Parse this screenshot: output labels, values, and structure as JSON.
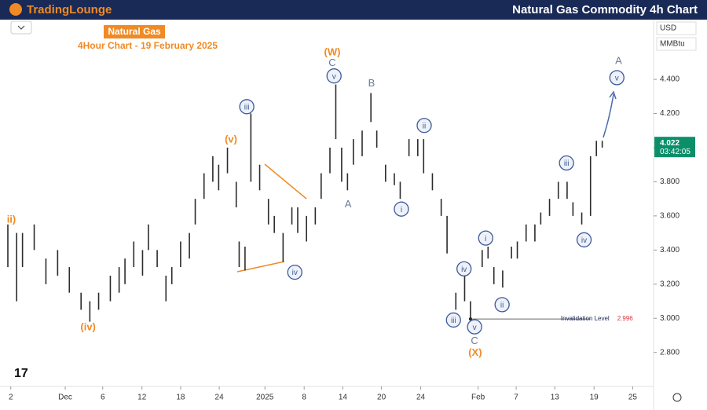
{
  "header": {
    "brand": "TradingLounge",
    "title": "Natural Gas Commodity 4h Chart"
  },
  "chart_data": {
    "type": "ohlc",
    "title": "Natural Gas",
    "subtitle": "4Hour Chart - 19 February 2025",
    "currency": "USD",
    "unit": "MMBtu",
    "color": "#2b2b2b",
    "xlim": [
      0,
      110
    ],
    "ylim": [
      2.61,
      4.75
    ],
    "xticks": [
      {
        "value": 0.5,
        "label": "2"
      },
      {
        "value": 9.8,
        "label": "Dec"
      },
      {
        "value": 16.2,
        "label": "6"
      },
      {
        "value": 22.9,
        "label": "12"
      },
      {
        "value": 29.5,
        "label": "18"
      },
      {
        "value": 36.1,
        "label": "24"
      },
      {
        "value": 43.9,
        "label": "2025"
      },
      {
        "value": 50.6,
        "label": "8"
      },
      {
        "value": 57.2,
        "label": "14"
      },
      {
        "value": 63.8,
        "label": "20"
      },
      {
        "value": 70.5,
        "label": "24"
      },
      {
        "value": 80.3,
        "label": "Feb"
      },
      {
        "value": 86.8,
        "label": "7"
      },
      {
        "value": 93.4,
        "label": "13"
      },
      {
        "value": 100.1,
        "label": "19"
      },
      {
        "value": 106.7,
        "label": "25"
      }
    ],
    "yticks": [
      {
        "value": 4.4,
        "label": "4.400"
      },
      {
        "value": 4.2,
        "label": "4.200"
      },
      {
        "value": 4.0,
        "label": "4.000"
      },
      {
        "value": 3.8,
        "label": "3.800"
      },
      {
        "value": 3.6,
        "label": "3.600"
      },
      {
        "value": 3.4,
        "label": "3.400"
      },
      {
        "value": 3.2,
        "label": "3.200"
      },
      {
        "value": 3.0,
        "label": "3.000"
      },
      {
        "value": 2.8,
        "label": "2.800"
      }
    ],
    "x": [
      0,
      1.5,
      2.5,
      4.5,
      6.5,
      8.5,
      10.5,
      12.5,
      14,
      15.5,
      17.5,
      19,
      20,
      21.5,
      23,
      24,
      25.5,
      27,
      28,
      29.5,
      31,
      32,
      33.5,
      35,
      36,
      37.5,
      39,
      39.5,
      40.5,
      41.5,
      43,
      44.5,
      45.5,
      47,
      48.5,
      49.5,
      51,
      52.5,
      53.5,
      55,
      56,
      57,
      58,
      59,
      60.5,
      62,
      63,
      64.5,
      66,
      67,
      68.5,
      70,
      71,
      72.5,
      74,
      75,
      76.5,
      78,
      79,
      81,
      82,
      83,
      84.5,
      86,
      87,
      88.5,
      90,
      91,
      92.5,
      94,
      95.5,
      96.5,
      98,
      99.5,
      100.5,
      101.5
    ],
    "low": [
      3.3,
      3.1,
      3.3,
      3.4,
      3.2,
      3.25,
      3.15,
      3.05,
      2.98,
      3.05,
      3.1,
      3.15,
      3.2,
      3.3,
      3.25,
      3.4,
      3.3,
      3.1,
      3.2,
      3.3,
      3.35,
      3.55,
      3.7,
      3.8,
      3.75,
      3.85,
      3.65,
      3.3,
      3.28,
      3.8,
      3.75,
      3.55,
      3.5,
      3.33,
      3.55,
      3.5,
      3.45,
      3.55,
      3.7,
      3.85,
      4.05,
      3.8,
      3.75,
      3.9,
      3.95,
      4.15,
      4.0,
      3.8,
      3.78,
      3.7,
      3.95,
      3.95,
      3.85,
      3.75,
      3.6,
      3.38,
      3.05,
      3.1,
      2.996,
      3.3,
      3.35,
      3.2,
      3.18,
      3.35,
      3.35,
      3.45,
      3.45,
      3.55,
      3.6,
      3.7,
      3.7,
      3.6,
      3.55,
      3.6,
      3.95,
      4.0
    ],
    "high": [
      3.55,
      3.5,
      3.5,
      3.55,
      3.35,
      3.4,
      3.3,
      3.15,
      3.1,
      3.15,
      3.25,
      3.3,
      3.35,
      3.45,
      3.4,
      3.55,
      3.4,
      3.25,
      3.3,
      3.45,
      3.5,
      3.7,
      3.85,
      3.95,
      3.9,
      4.0,
      3.8,
      3.45,
      3.42,
      4.2,
      3.9,
      3.7,
      3.6,
      3.5,
      3.65,
      3.65,
      3.6,
      3.65,
      3.85,
      4.0,
      4.37,
      4.0,
      3.85,
      4.05,
      4.1,
      4.32,
      4.1,
      3.9,
      3.85,
      3.8,
      4.05,
      4.05,
      4.05,
      3.85,
      3.7,
      3.6,
      3.15,
      3.25,
      3.1,
      3.4,
      3.42,
      3.3,
      3.28,
      3.42,
      3.45,
      3.55,
      3.55,
      3.62,
      3.7,
      3.8,
      3.8,
      3.68,
      3.62,
      3.95,
      4.04,
      4.04
    ],
    "last_price": 4.022,
    "countdown": "03:42:05",
    "invalidation": {
      "label": "Invalidation Level",
      "value": 2.996,
      "x_start": 79,
      "x_end": 99.5
    },
    "annotations": [
      {
        "label": "ii)",
        "x": 0.6,
        "y": 3.58,
        "color": "#f08a24",
        "circled": false
      },
      {
        "label": "(iv)",
        "x": 13.7,
        "y": 2.95,
        "color": "#f08a24",
        "circled": false
      },
      {
        "label": "(v)",
        "x": 38.1,
        "y": 4.05,
        "color": "#f08a24",
        "circled": false
      },
      {
        "label": "iii",
        "x": 40.8,
        "y": 4.24,
        "color": "#3b5a9a",
        "circled": true
      },
      {
        "label": "iv",
        "x": 49,
        "y": 3.27,
        "color": "#3b5a9a",
        "circled": true
      },
      {
        "label": "(W)",
        "x": 55.4,
        "y": 4.56,
        "color": "#f08a24",
        "circled": false
      },
      {
        "label": "C",
        "x": 55.4,
        "y": 4.5,
        "color": "#6b7a99",
        "circled": false
      },
      {
        "label": "v",
        "x": 55.7,
        "y": 4.42,
        "color": "#3b5a9a",
        "circled": true
      },
      {
        "label": "A",
        "x": 58.1,
        "y": 3.67,
        "color": "#6b7a99",
        "circled": false
      },
      {
        "label": "B",
        "x": 62.1,
        "y": 4.38,
        "color": "#6b7a99",
        "circled": false
      },
      {
        "label": "ii",
        "x": 71.1,
        "y": 4.13,
        "color": "#3b5a9a",
        "circled": true
      },
      {
        "label": "i",
        "x": 67.2,
        "y": 3.64,
        "color": "#3b5a9a",
        "circled": true
      },
      {
        "label": "iv",
        "x": 77.9,
        "y": 3.29,
        "color": "#3b5a9a",
        "circled": true
      },
      {
        "label": "iii",
        "x": 76.1,
        "y": 2.99,
        "color": "#3b5a9a",
        "circled": true
      },
      {
        "label": "v",
        "x": 79.7,
        "y": 2.95,
        "color": "#3b5a9a",
        "circled": true
      },
      {
        "label": "C",
        "x": 79.7,
        "y": 2.87,
        "color": "#6b7a99",
        "circled": false
      },
      {
        "label": "(X)",
        "x": 79.8,
        "y": 2.8,
        "color": "#f08a24",
        "circled": false
      },
      {
        "label": "i",
        "x": 81.6,
        "y": 3.47,
        "color": "#3b5a9a",
        "circled": true
      },
      {
        "label": "ii",
        "x": 84.4,
        "y": 3.08,
        "color": "#3b5a9a",
        "circled": true
      },
      {
        "label": "iii",
        "x": 95.4,
        "y": 3.91,
        "color": "#3b5a9a",
        "circled": true
      },
      {
        "label": "iv",
        "x": 98.4,
        "y": 3.46,
        "color": "#3b5a9a",
        "circled": true
      },
      {
        "label": "A",
        "x": 104.3,
        "y": 4.51,
        "color": "#6b7a99",
        "circled": false
      },
      {
        "label": "v",
        "x": 104,
        "y": 4.41,
        "color": "#3b5a9a",
        "circled": true
      }
    ]
  }
}
